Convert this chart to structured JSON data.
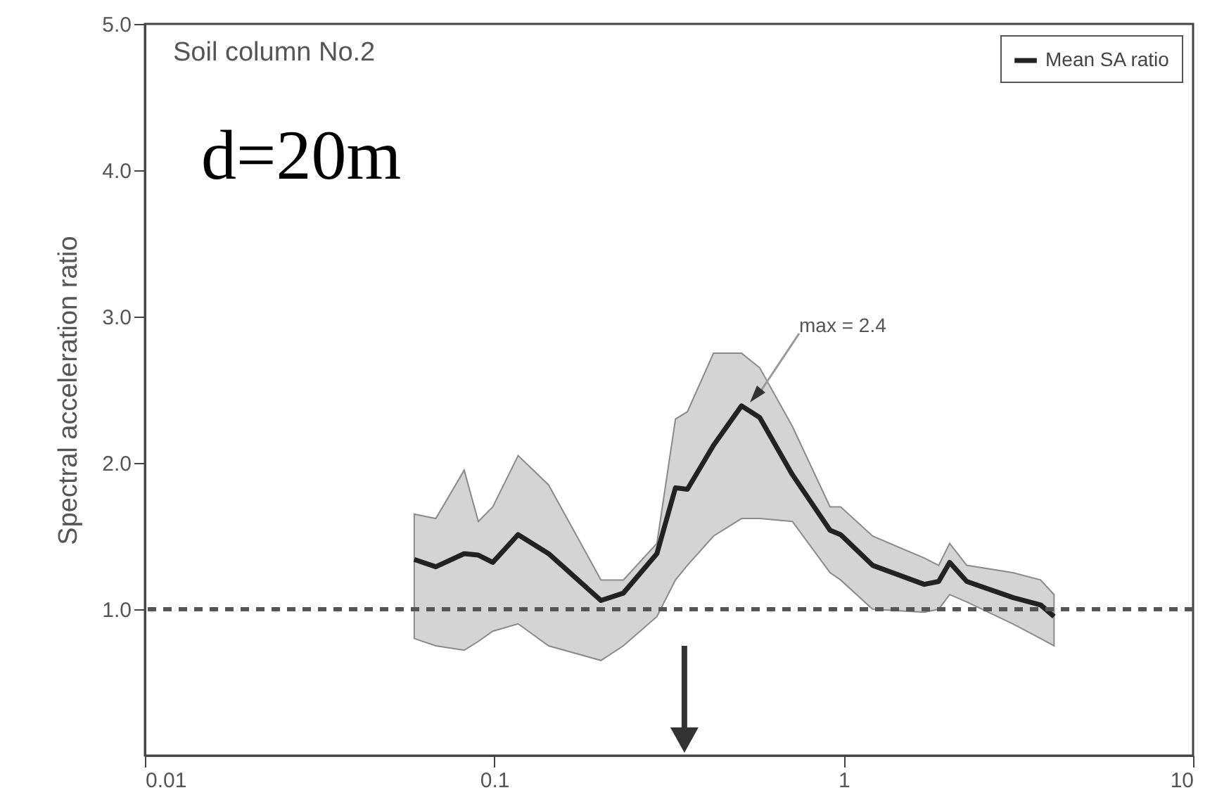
{
  "chart_data": {
    "type": "line",
    "xlabel": null,
    "ylabel": "Spectral acceleration ratio",
    "log": "x",
    "xlim": [
      0.01,
      10
    ],
    "xticks": [
      0.01,
      0.1,
      1,
      10
    ],
    "ylim": [
      0,
      5
    ],
    "yticks": [
      {
        "value": 1,
        "label": "1.0"
      },
      {
        "value": 2,
        "label": "2.0"
      },
      {
        "value": 3,
        "label": "3.0"
      },
      {
        "value": 4,
        "label": "4.0"
      },
      {
        "value": 5,
        "label": "5.0"
      }
    ],
    "grid": false,
    "legend": "top right",
    "marker": "none",
    "line_style": "solid",
    "x": [
      0.059,
      0.068,
      0.082,
      0.09,
      0.099,
      0.117,
      0.143,
      0.202,
      0.234,
      0.292,
      0.33,
      0.357,
      0.424,
      0.51,
      0.575,
      0.713,
      0.914,
      0.98,
      1.21,
      1.7,
      1.87,
      2.01,
      2.25,
      3.05,
      3.66,
      4.0
    ],
    "series": [
      {
        "name": "Mean SA ratio",
        "color": "#222222",
        "values": [
          1.34,
          1.29,
          1.38,
          1.37,
          1.32,
          1.51,
          1.38,
          1.06,
          1.11,
          1.38,
          1.83,
          1.82,
          2.12,
          2.39,
          2.31,
          1.92,
          1.54,
          1.51,
          1.3,
          1.17,
          1.19,
          1.32,
          1.19,
          1.08,
          1.03,
          0.95
        ],
        "lower": [
          0.8,
          0.75,
          0.72,
          0.78,
          0.85,
          0.9,
          0.75,
          0.65,
          0.75,
          0.95,
          1.2,
          1.3,
          1.5,
          1.62,
          1.62,
          1.6,
          1.25,
          1.2,
          1.0,
          0.98,
          1.0,
          1.1,
          1.05,
          0.9,
          0.8,
          0.75
        ],
        "upper": [
          1.65,
          1.62,
          1.95,
          1.6,
          1.7,
          2.05,
          1.85,
          1.2,
          1.2,
          1.45,
          2.3,
          2.35,
          2.75,
          2.75,
          2.65,
          2.25,
          1.7,
          1.7,
          1.5,
          1.35,
          1.3,
          1.45,
          1.3,
          1.25,
          1.2,
          1.1
        ]
      }
    ],
    "ref_lines": [
      {
        "axis": "y",
        "value": 1,
        "label": null,
        "color": "#555555",
        "line_style": "dashed"
      }
    ],
    "annotations": [
      "Soil column No.2",
      "d=20m",
      "max = 2.4"
    ]
  }
}
